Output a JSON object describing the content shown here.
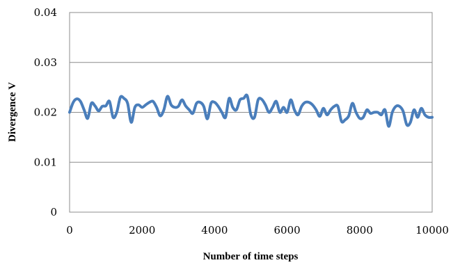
{
  "chart_data": {
    "type": "line",
    "title": "",
    "xlabel": "Number of time steps",
    "ylabel": "Divergence V",
    "xlim": [
      0,
      10000
    ],
    "ylim": [
      0,
      0.04
    ],
    "x_ticks": [
      "0",
      "2000",
      "4000",
      "6000",
      "8000",
      "10000"
    ],
    "y_ticks": [
      "0",
      "0.01",
      "0.02",
      "0.03",
      "0.04"
    ],
    "grid": "horizontal",
    "legend": "none",
    "series": [
      {
        "color": "#4a7ebb",
        "x": [
          0,
          100,
          200,
          300,
          400,
          500,
          600,
          700,
          800,
          900,
          1000,
          1100,
          1200,
          1300,
          1400,
          1500,
          1600,
          1700,
          1800,
          1900,
          2000,
          2100,
          2200,
          2300,
          2400,
          2500,
          2600,
          2700,
          2800,
          2900,
          3000,
          3100,
          3200,
          3300,
          3400,
          3500,
          3600,
          3700,
          3800,
          3900,
          4000,
          4100,
          4200,
          4300,
          4400,
          4500,
          4600,
          4700,
          4800,
          4900,
          5000,
          5100,
          5200,
          5300,
          5400,
          5500,
          5600,
          5700,
          5800,
          5900,
          6000,
          6100,
          6200,
          6300,
          6400,
          6500,
          6600,
          6700,
          6800,
          6900,
          7000,
          7100,
          7200,
          7300,
          7400,
          7500,
          7600,
          7700,
          7800,
          7900,
          8000,
          8100,
          8200,
          8300,
          8400,
          8500,
          8600,
          8700,
          8800,
          8900,
          9000,
          9100,
          9200,
          9300,
          9400,
          9500,
          9600,
          9700,
          9800,
          9900,
          10000
        ],
        "values": [
          0.02,
          0.022,
          0.0227,
          0.0222,
          0.0205,
          0.0188,
          0.0218,
          0.0213,
          0.0203,
          0.0212,
          0.0213,
          0.0222,
          0.019,
          0.02,
          0.023,
          0.0228,
          0.0218,
          0.018,
          0.021,
          0.0215,
          0.021,
          0.0215,
          0.022,
          0.0222,
          0.021,
          0.0193,
          0.0205,
          0.0232,
          0.0215,
          0.021,
          0.0212,
          0.0225,
          0.0213,
          0.0205,
          0.0198,
          0.0218,
          0.022,
          0.0212,
          0.0187,
          0.0218,
          0.022,
          0.0212,
          0.02,
          0.019,
          0.0228,
          0.021,
          0.0205,
          0.0225,
          0.0228,
          0.0233,
          0.0195,
          0.019,
          0.0225,
          0.0226,
          0.0215,
          0.02,
          0.021,
          0.0222,
          0.02,
          0.021,
          0.02,
          0.0225,
          0.0205,
          0.0195,
          0.0212,
          0.022,
          0.022,
          0.0215,
          0.0205,
          0.0192,
          0.0208,
          0.0195,
          0.0205,
          0.0212,
          0.0212,
          0.0182,
          0.0185,
          0.0193,
          0.0218,
          0.02,
          0.0188,
          0.019,
          0.0205,
          0.0198,
          0.02,
          0.02,
          0.0195,
          0.0205,
          0.0172,
          0.02,
          0.0212,
          0.0212,
          0.0202,
          0.0175,
          0.018,
          0.0205,
          0.019,
          0.0208,
          0.0195,
          0.019,
          0.019
        ]
      }
    ]
  }
}
